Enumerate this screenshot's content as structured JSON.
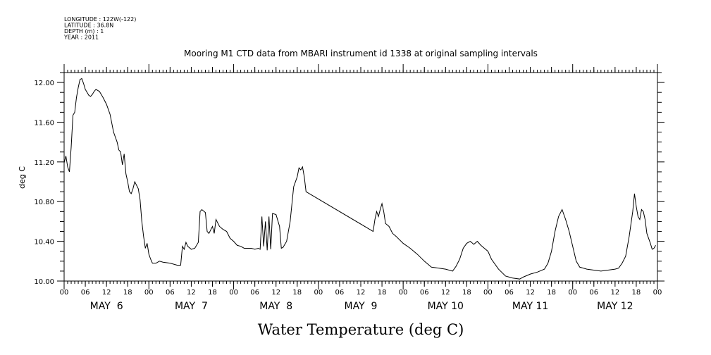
{
  "header": {
    "meta_lines": [
      "LONGITUDE : 122W(-122)",
      "LATITUDE : 36.8N",
      "DEPTH (m) : 1",
      "YEAR : 2011"
    ],
    "title": "Mooring M1 CTD data from MBARI instrument id 1338 at original sampling intervals"
  },
  "chart_data": {
    "type": "line",
    "title": "Mooring M1 CTD data from MBARI instrument id 1338 at original sampling intervals",
    "xlabel": "Water Temperature (deg C)",
    "ylabel": "deg C",
    "x_unit": "hour of May 2011",
    "xlim": [
      "2011-05-06 00:00",
      "2011-05-13 00:00"
    ],
    "ylim": [
      10.0,
      12.1
    ],
    "yticks": [
      "10.00",
      "10.40",
      "10.80",
      "11.20",
      "11.60",
      "12.00"
    ],
    "xtick_hour_labels": [
      "00",
      "06",
      "12",
      "18",
      "00",
      "06",
      "12",
      "18",
      "00",
      "06",
      "12",
      "18",
      "00",
      "06",
      "12",
      "18",
      "00",
      "06",
      "12",
      "18",
      "00",
      "06",
      "12",
      "18",
      "00",
      "06",
      "12",
      "18",
      "00"
    ],
    "day_labels": [
      "MAY  6",
      "MAY  7",
      "MAY  8",
      "MAY  9",
      "MAY 10",
      "MAY 11",
      "MAY 12"
    ],
    "grid": false,
    "series": [
      {
        "color": "#000000",
        "points": [
          [
            "2011-05-06 00:00",
            11.19
          ],
          [
            "2011-05-06 00:30",
            11.26
          ],
          [
            "2011-05-06 01:00",
            11.15
          ],
          [
            "2011-05-06 01:30",
            11.1
          ],
          [
            "2011-05-06 02:00",
            11.35
          ],
          [
            "2011-05-06 02:30",
            11.67
          ],
          [
            "2011-05-06 03:00",
            11.7
          ],
          [
            "2011-05-06 03:30",
            11.85
          ],
          [
            "2011-05-06 04:00",
            11.95
          ],
          [
            "2011-05-06 04:30",
            12.03
          ],
          [
            "2011-05-06 05:00",
            12.04
          ],
          [
            "2011-05-06 05:30",
            11.99
          ],
          [
            "2011-05-06 06:00",
            11.93
          ],
          [
            "2011-05-06 07:00",
            11.87
          ],
          [
            "2011-05-06 07:30",
            11.86
          ],
          [
            "2011-05-06 08:00",
            11.88
          ],
          [
            "2011-05-06 08:30",
            11.91
          ],
          [
            "2011-05-06 09:00",
            11.93
          ],
          [
            "2011-05-06 10:00",
            11.91
          ],
          [
            "2011-05-06 11:00",
            11.85
          ],
          [
            "2011-05-06 12:00",
            11.78
          ],
          [
            "2011-05-06 13:00",
            11.68
          ],
          [
            "2011-05-06 14:00",
            11.5
          ],
          [
            "2011-05-06 14:30",
            11.45
          ],
          [
            "2011-05-06 15:00",
            11.4
          ],
          [
            "2011-05-06 15:30",
            11.32
          ],
          [
            "2011-05-06 16:00",
            11.3
          ],
          [
            "2011-05-06 16:30",
            11.17
          ],
          [
            "2011-05-06 17:00",
            11.28
          ],
          [
            "2011-05-06 17:30",
            11.08
          ],
          [
            "2011-05-06 18:00",
            11.0
          ],
          [
            "2011-05-06 18:30",
            10.9
          ],
          [
            "2011-05-06 19:00",
            10.88
          ],
          [
            "2011-05-06 19:30",
            10.93
          ],
          [
            "2011-05-06 20:00",
            11.0
          ],
          [
            "2011-05-06 21:00",
            10.93
          ],
          [
            "2011-05-06 21:30",
            10.82
          ],
          [
            "2011-05-06 22:00",
            10.6
          ],
          [
            "2011-05-06 22:30",
            10.45
          ],
          [
            "2011-05-06 23:00",
            10.33
          ],
          [
            "2011-05-06 23:30",
            10.38
          ],
          [
            "2011-05-07 00:00",
            10.27
          ],
          [
            "2011-05-07 00:30",
            10.22
          ],
          [
            "2011-05-07 01:00",
            10.18
          ],
          [
            "2011-05-07 02:00",
            10.18
          ],
          [
            "2011-05-07 03:00",
            10.2
          ],
          [
            "2011-05-07 04:00",
            10.19
          ],
          [
            "2011-05-07 06:00",
            10.18
          ],
          [
            "2011-05-07 08:00",
            10.16
          ],
          [
            "2011-05-07 09:00",
            10.16
          ],
          [
            "2011-05-07 09:30",
            10.35
          ],
          [
            "2011-05-07 10:00",
            10.32
          ],
          [
            "2011-05-07 10:30",
            10.39
          ],
          [
            "2011-05-07 11:00",
            10.35
          ],
          [
            "2011-05-07 12:00",
            10.32
          ],
          [
            "2011-05-07 13:00",
            10.33
          ],
          [
            "2011-05-07 14:00",
            10.39
          ],
          [
            "2011-05-07 14:30",
            10.7
          ],
          [
            "2011-05-07 15:00",
            10.72
          ],
          [
            "2011-05-07 16:00",
            10.69
          ],
          [
            "2011-05-07 16:30",
            10.5
          ],
          [
            "2011-05-07 17:00",
            10.48
          ],
          [
            "2011-05-07 18:00",
            10.55
          ],
          [
            "2011-05-07 18:30",
            10.48
          ],
          [
            "2011-05-07 19:00",
            10.62
          ],
          [
            "2011-05-07 20:00",
            10.55
          ],
          [
            "2011-05-07 21:00",
            10.52
          ],
          [
            "2011-05-07 22:00",
            10.5
          ],
          [
            "2011-05-07 23:00",
            10.43
          ],
          [
            "2011-05-08 00:00",
            10.4
          ],
          [
            "2011-05-08 01:00",
            10.36
          ],
          [
            "2011-05-08 02:00",
            10.35
          ],
          [
            "2011-05-08 03:00",
            10.33
          ],
          [
            "2011-05-08 05:00",
            10.33
          ],
          [
            "2011-05-08 06:00",
            10.32
          ],
          [
            "2011-05-08 07:00",
            10.33
          ],
          [
            "2011-05-08 07:30",
            10.32
          ],
          [
            "2011-05-08 08:00",
            10.65
          ],
          [
            "2011-05-08 08:30",
            10.35
          ],
          [
            "2011-05-08 09:00",
            10.6
          ],
          [
            "2011-05-08 09:30",
            10.31
          ],
          [
            "2011-05-08 10:00",
            10.65
          ],
          [
            "2011-05-08 10:30",
            10.32
          ],
          [
            "2011-05-08 11:00",
            10.68
          ],
          [
            "2011-05-08 12:00",
            10.67
          ],
          [
            "2011-05-08 13:00",
            10.55
          ],
          [
            "2011-05-08 13:30",
            10.33
          ],
          [
            "2011-05-08 14:00",
            10.34
          ],
          [
            "2011-05-08 15:00",
            10.4
          ],
          [
            "2011-05-08 16:00",
            10.6
          ],
          [
            "2011-05-08 17:00",
            10.95
          ],
          [
            "2011-05-08 17:30",
            11.0
          ],
          [
            "2011-05-08 18:00",
            11.05
          ],
          [
            "2011-05-08 18:30",
            11.14
          ],
          [
            "2011-05-08 19:00",
            11.12
          ],
          [
            "2011-05-08 19:30",
            11.15
          ],
          [
            "2011-05-08 20:00",
            11.05
          ],
          [
            "2011-05-08 20:30",
            10.9
          ],
          [
            "2011-05-09 15:30",
            10.5
          ],
          [
            "2011-05-09 16:00",
            10.62
          ],
          [
            "2011-05-09 16:30",
            10.7
          ],
          [
            "2011-05-09 17:00",
            10.65
          ],
          [
            "2011-05-09 17:30",
            10.72
          ],
          [
            "2011-05-09 18:00",
            10.78
          ],
          [
            "2011-05-09 18:30",
            10.7
          ],
          [
            "2011-05-09 19:00",
            10.58
          ],
          [
            "2011-05-09 20:00",
            10.55
          ],
          [
            "2011-05-09 21:00",
            10.48
          ],
          [
            "2011-05-09 22:00",
            10.45
          ],
          [
            "2011-05-10 00:00",
            10.38
          ],
          [
            "2011-05-10 02:00",
            10.33
          ],
          [
            "2011-05-10 04:00",
            10.27
          ],
          [
            "2011-05-10 06:00",
            10.2
          ],
          [
            "2011-05-10 08:00",
            10.14
          ],
          [
            "2011-05-10 10:00",
            10.13
          ],
          [
            "2011-05-10 12:00",
            10.12
          ],
          [
            "2011-05-10 14:00",
            10.1
          ],
          [
            "2011-05-10 15:00",
            10.15
          ],
          [
            "2011-05-10 16:00",
            10.22
          ],
          [
            "2011-05-10 17:00",
            10.33
          ],
          [
            "2011-05-10 18:00",
            10.38
          ],
          [
            "2011-05-10 19:00",
            10.4
          ],
          [
            "2011-05-10 20:00",
            10.37
          ],
          [
            "2011-05-10 21:00",
            10.4
          ],
          [
            "2011-05-10 22:00",
            10.36
          ],
          [
            "2011-05-10 23:00",
            10.33
          ],
          [
            "2011-05-11 00:00",
            10.3
          ],
          [
            "2011-05-11 01:00",
            10.22
          ],
          [
            "2011-05-11 03:00",
            10.12
          ],
          [
            "2011-05-11 05:00",
            10.05
          ],
          [
            "2011-05-11 07:00",
            10.03
          ],
          [
            "2011-05-11 09:00",
            10.02
          ],
          [
            "2011-05-11 10:00",
            10.04
          ],
          [
            "2011-05-11 12:00",
            10.07
          ],
          [
            "2011-05-11 14:00",
            10.09
          ],
          [
            "2011-05-11 16:00",
            10.12
          ],
          [
            "2011-05-11 17:00",
            10.18
          ],
          [
            "2011-05-11 18:00",
            10.3
          ],
          [
            "2011-05-11 19:00",
            10.5
          ],
          [
            "2011-05-11 20:00",
            10.65
          ],
          [
            "2011-05-11 21:00",
            10.72
          ],
          [
            "2011-05-11 22:00",
            10.62
          ],
          [
            "2011-05-11 23:00",
            10.5
          ],
          [
            "2011-05-12 00:00",
            10.35
          ],
          [
            "2011-05-12 01:00",
            10.2
          ],
          [
            "2011-05-12 02:00",
            10.14
          ],
          [
            "2011-05-12 04:00",
            10.12
          ],
          [
            "2011-05-12 06:00",
            10.11
          ],
          [
            "2011-05-12 08:00",
            10.1
          ],
          [
            "2011-05-12 10:00",
            10.11
          ],
          [
            "2011-05-12 12:00",
            10.12
          ],
          [
            "2011-05-12 13:00",
            10.13
          ],
          [
            "2011-05-12 14:00",
            10.18
          ],
          [
            "2011-05-12 15:00",
            10.25
          ],
          [
            "2011-05-12 16:00",
            10.45
          ],
          [
            "2011-05-12 17:00",
            10.7
          ],
          [
            "2011-05-12 17:30",
            10.88
          ],
          [
            "2011-05-12 18:00",
            10.75
          ],
          [
            "2011-05-12 18:30",
            10.65
          ],
          [
            "2011-05-12 19:00",
            10.62
          ],
          [
            "2011-05-12 19:30",
            10.72
          ],
          [
            "2011-05-12 20:00",
            10.7
          ],
          [
            "2011-05-12 20:30",
            10.62
          ],
          [
            "2011-05-12 21:00",
            10.48
          ],
          [
            "2011-05-12 22:00",
            10.38
          ],
          [
            "2011-05-12 22:30",
            10.32
          ],
          [
            "2011-05-12 23:00",
            10.33
          ],
          [
            "2011-05-12 23:30",
            10.36
          ]
        ]
      }
    ]
  }
}
